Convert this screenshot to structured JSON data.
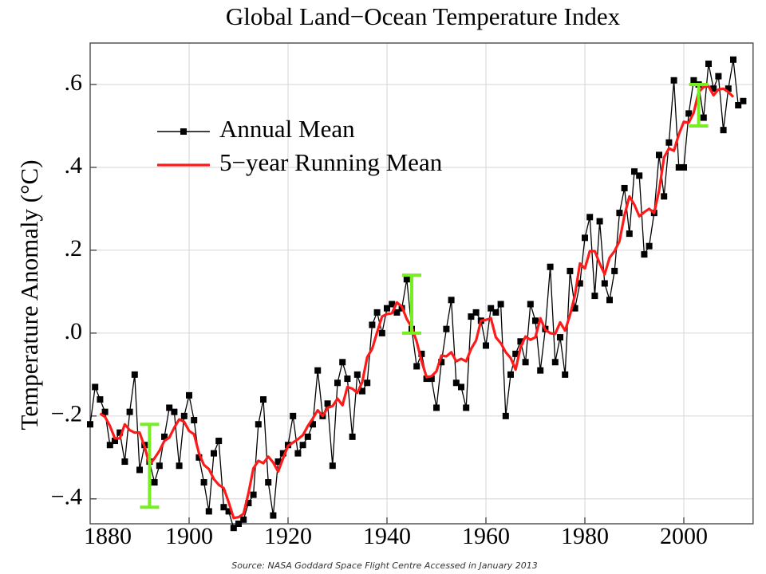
{
  "chart_data": {
    "type": "line",
    "title": "Global Land−Ocean Temperature Index",
    "ylabel": "Temperature Anomaly (°C)",
    "source": "Source: NASA Goddard Space Flight Centre Accessed in January 2013",
    "x": [
      1880,
      1881,
      1882,
      1883,
      1884,
      1885,
      1886,
      1887,
      1888,
      1889,
      1890,
      1891,
      1892,
      1893,
      1894,
      1895,
      1896,
      1897,
      1898,
      1899,
      1900,
      1901,
      1902,
      1903,
      1904,
      1905,
      1906,
      1907,
      1908,
      1909,
      1910,
      1911,
      1912,
      1913,
      1914,
      1915,
      1916,
      1917,
      1918,
      1919,
      1920,
      1921,
      1922,
      1923,
      1924,
      1925,
      1926,
      1927,
      1928,
      1929,
      1930,
      1931,
      1932,
      1933,
      1934,
      1935,
      1936,
      1937,
      1938,
      1939,
      1940,
      1941,
      1942,
      1943,
      1944,
      1945,
      1946,
      1947,
      1948,
      1949,
      1950,
      1951,
      1952,
      1953,
      1954,
      1955,
      1956,
      1957,
      1958,
      1959,
      1960,
      1961,
      1962,
      1963,
      1964,
      1965,
      1966,
      1967,
      1968,
      1969,
      1970,
      1971,
      1972,
      1973,
      1974,
      1975,
      1976,
      1977,
      1978,
      1979,
      1980,
      1981,
      1982,
      1983,
      1984,
      1985,
      1986,
      1987,
      1988,
      1989,
      1990,
      1991,
      1992,
      1993,
      1994,
      1995,
      1996,
      1997,
      1998,
      1999,
      2000,
      2001,
      2002,
      2003,
      2004,
      2005,
      2006,
      2007,
      2008,
      2009,
      2010,
      2011,
      2012
    ],
    "series": [
      {
        "name": "Annual Mean",
        "color": "#000000",
        "marker": "square",
        "values": [
          -0.22,
          -0.13,
          -0.16,
          -0.19,
          -0.27,
          -0.26,
          -0.24,
          -0.31,
          -0.19,
          -0.1,
          -0.33,
          -0.27,
          -0.31,
          -0.36,
          -0.32,
          -0.25,
          -0.18,
          -0.19,
          -0.32,
          -0.2,
          -0.15,
          -0.21,
          -0.3,
          -0.36,
          -0.43,
          -0.29,
          -0.26,
          -0.42,
          -0.43,
          -0.47,
          -0.46,
          -0.45,
          -0.41,
          -0.39,
          -0.22,
          -0.16,
          -0.36,
          -0.44,
          -0.31,
          -0.29,
          -0.27,
          -0.2,
          -0.29,
          -0.27,
          -0.25,
          -0.22,
          -0.09,
          -0.2,
          -0.17,
          -0.32,
          -0.12,
          -0.07,
          -0.11,
          -0.25,
          -0.1,
          -0.14,
          -0.12,
          0.02,
          0.05,
          0.0,
          0.06,
          0.07,
          0.05,
          0.06,
          0.13,
          0.01,
          -0.08,
          -0.05,
          -0.11,
          -0.11,
          -0.18,
          -0.07,
          0.01,
          0.08,
          -0.12,
          -0.13,
          -0.18,
          0.04,
          0.05,
          0.03,
          -0.03,
          0.06,
          0.05,
          0.07,
          -0.2,
          -0.1,
          -0.05,
          -0.02,
          -0.07,
          0.07,
          0.03,
          -0.09,
          0.01,
          0.16,
          -0.07,
          -0.01,
          -0.1,
          0.15,
          0.06,
          0.12,
          0.23,
          0.28,
          0.09,
          0.27,
          0.12,
          0.08,
          0.15,
          0.29,
          0.35,
          0.24,
          0.39,
          0.38,
          0.19,
          0.21,
          0.29,
          0.43,
          0.33,
          0.46,
          0.61,
          0.4,
          0.4,
          0.53,
          0.61,
          0.6,
          0.52,
          0.65,
          0.59,
          0.62,
          0.49,
          0.59,
          0.66,
          0.55,
          0.56
        ]
      },
      {
        "name": "5−year Running Mean",
        "color": "#ff1a1a",
        "marker": "none",
        "values": [
          null,
          null,
          -0.194,
          -0.202,
          -0.224,
          -0.254,
          -0.254,
          -0.22,
          -0.234,
          -0.24,
          -0.24,
          -0.274,
          -0.318,
          -0.302,
          -0.284,
          -0.26,
          -0.252,
          -0.228,
          -0.208,
          -0.214,
          -0.236,
          -0.244,
          -0.29,
          -0.318,
          -0.328,
          -0.352,
          -0.366,
          -0.374,
          -0.408,
          -0.446,
          -0.444,
          -0.436,
          -0.386,
          -0.326,
          -0.308,
          -0.314,
          -0.298,
          -0.312,
          -0.334,
          -0.302,
          -0.272,
          -0.264,
          -0.256,
          -0.246,
          -0.224,
          -0.206,
          -0.186,
          -0.2,
          -0.18,
          -0.176,
          -0.158,
          -0.174,
          -0.13,
          -0.134,
          -0.144,
          -0.118,
          -0.058,
          -0.038,
          0.002,
          0.04,
          0.046,
          0.048,
          0.074,
          0.064,
          0.034,
          0.014,
          -0.02,
          -0.068,
          -0.106,
          -0.104,
          -0.092,
          -0.054,
          -0.056,
          -0.046,
          -0.068,
          -0.062,
          -0.068,
          -0.038,
          -0.018,
          0.03,
          0.032,
          0.036,
          -0.01,
          -0.024,
          -0.046,
          -0.06,
          -0.088,
          -0.034,
          -0.008,
          -0.016,
          -0.01,
          0.036,
          0.008,
          0,
          -0.002,
          0.026,
          0.006,
          0.044,
          0.092,
          0.168,
          0.156,
          0.198,
          0.198,
          0.168,
          0.142,
          0.182,
          0.198,
          0.222,
          0.284,
          0.33,
          0.31,
          0.282,
          0.292,
          0.3,
          0.29,
          0.344,
          0.424,
          0.446,
          0.44,
          0.48,
          0.51,
          0.508,
          0.532,
          0.582,
          0.594,
          0.596,
          0.574,
          0.588,
          0.59,
          0.582,
          0.57,
          null,
          null
        ]
      }
    ],
    "uncertainty": {
      "color": "#77ee22",
      "bars": [
        {
          "x": 1892,
          "low": -0.42,
          "high": -0.22
        },
        {
          "x": 1945,
          "low": 0.0,
          "high": 0.14
        },
        {
          "x": 2003,
          "low": 0.5,
          "high": 0.6
        }
      ]
    },
    "xlim": [
      1880,
      2014
    ],
    "ylim": [
      -0.46,
      0.7
    ],
    "xticks": [
      1880,
      1900,
      1920,
      1940,
      1960,
      1980,
      2000
    ],
    "yticks": [
      {
        "value": -0.4,
        "label": "−.4"
      },
      {
        "value": -0.2,
        "label": "−.2"
      },
      {
        "value": 0,
        "label": ".0"
      },
      {
        "value": 0.2,
        "label": ".2"
      },
      {
        "value": 0.4,
        "label": ".4"
      },
      {
        "value": 0.6,
        "label": ".6"
      }
    ],
    "grid": true,
    "legend": "upper left"
  }
}
